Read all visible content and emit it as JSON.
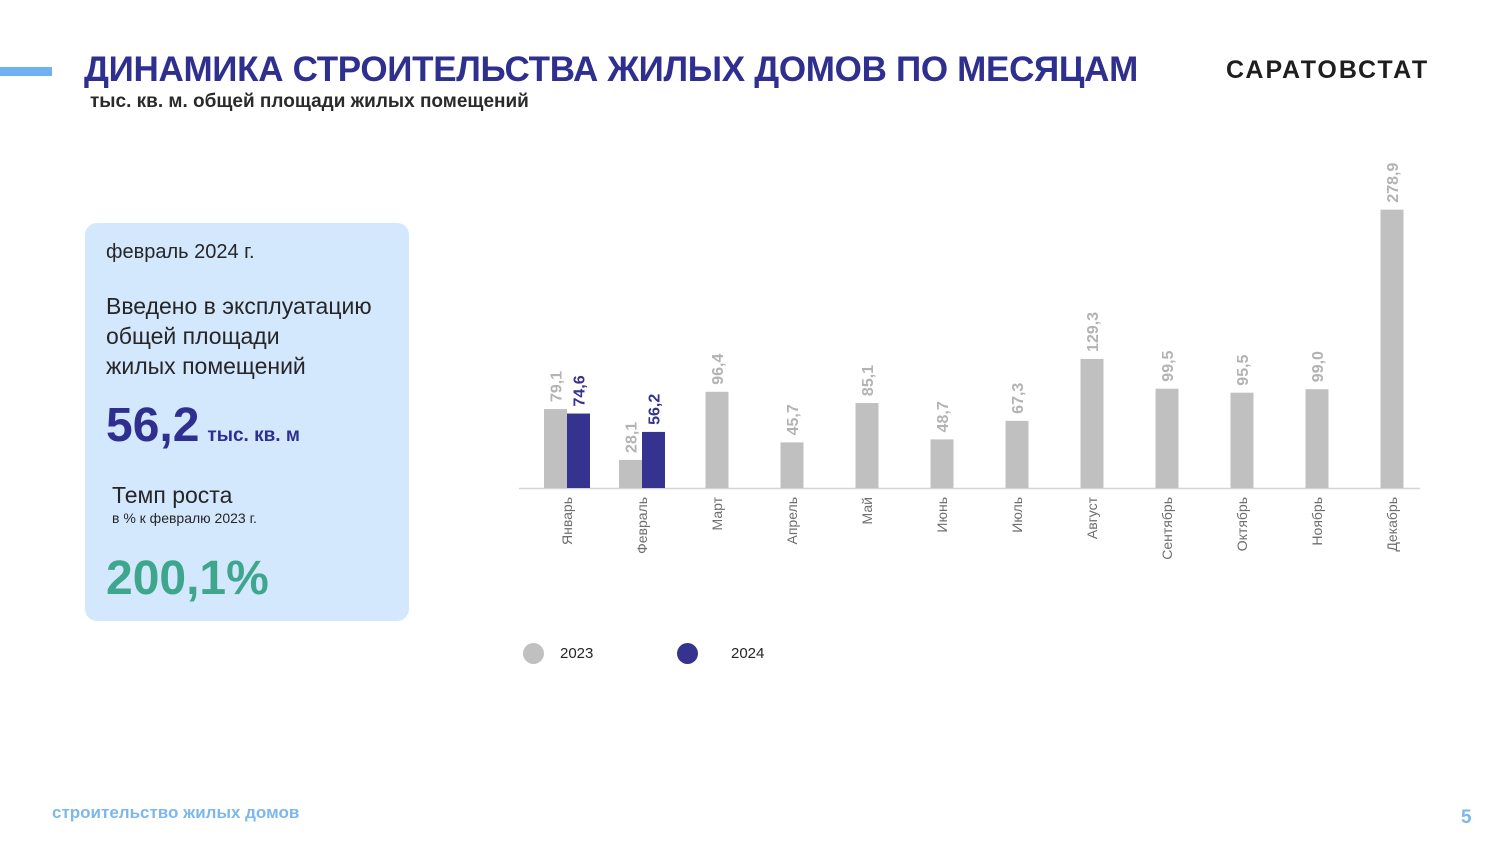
{
  "header": {
    "title": "ДИНАМИКА СТРОИТЕЛЬСТВА ЖИЛЫХ ДОМОВ ПО МЕСЯЦАМ",
    "subtitle": "тыс. кв. м. общей площади жилых помещений",
    "brand": "САРАТОВСТАТ"
  },
  "card": {
    "period": "февраль 2024 г.",
    "description": "Введено в эксплуатацию\nобщей площади\nжилых помещений",
    "value": "56,2",
    "unit": "тыс. кв. м",
    "growth_title": "Темп роста",
    "growth_note": "в % к  февралю 2023 г.",
    "growth_value": "200,1%"
  },
  "footer": {
    "section": "строительство жилых домов",
    "page": "5"
  },
  "colors": {
    "accent": "#6fb1f2",
    "title": "#2e2f8e",
    "series_2023": "#c0c0c0",
    "series_2024": "#35338f",
    "growth": "#3da68d",
    "card_bg": "#d3e7fd"
  },
  "chart_data": {
    "type": "bar",
    "categories": [
      "Январь",
      "Февраль",
      "Март",
      "Апрель",
      "Май",
      "Июнь",
      "Июль",
      "Август",
      "Сентябрь",
      "Октябрь",
      "Ноябрь",
      "Декабрь"
    ],
    "series": [
      {
        "name": "2023",
        "values": [
          79.1,
          28.1,
          96.4,
          45.7,
          85.1,
          48.7,
          67.3,
          129.3,
          99.5,
          95.5,
          99.0,
          278.9
        ],
        "labels": [
          "79,1",
          "28,1",
          "96,4",
          "45,7",
          "85,1",
          "48,7",
          "67,3",
          "129,3",
          "99,5",
          "95,5",
          "99,0",
          "278,9"
        ]
      },
      {
        "name": "2024",
        "values": [
          74.6,
          56.2,
          null,
          null,
          null,
          null,
          null,
          null,
          null,
          null,
          null,
          null
        ],
        "labels": [
          "74,6",
          "56,2",
          "",
          "",
          "",
          "",
          "",
          "",
          "",
          "",
          "",
          ""
        ]
      }
    ],
    "ylim": [
      0,
      300
    ],
    "grid": false,
    "legend": "bottom-left"
  }
}
